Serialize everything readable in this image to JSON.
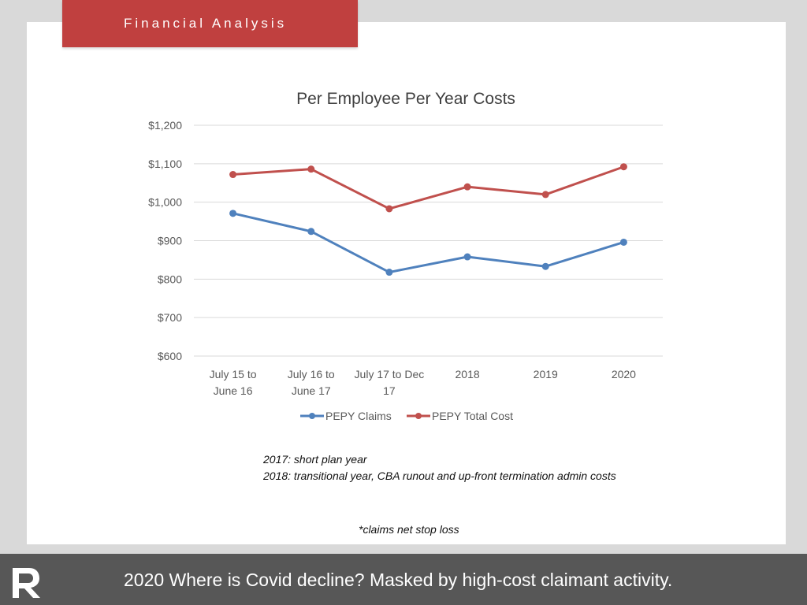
{
  "header": {
    "title": "Financial Analysis"
  },
  "chart_data": {
    "type": "line",
    "title": "Per Employee Per Year Costs",
    "categories": [
      [
        "July 15 to",
        "June 16"
      ],
      [
        "July 16 to",
        "June 17"
      ],
      [
        "July 17 to Dec",
        "17"
      ],
      [
        "2018"
      ],
      [
        "2019"
      ],
      [
        "2020"
      ]
    ],
    "ylim": [
      600,
      1200
    ],
    "yticks": [
      600,
      700,
      800,
      900,
      1000,
      1100,
      1200
    ],
    "ytick_labels": [
      "$600",
      "$700",
      "$800",
      "$900",
      "$1,000",
      "$1,100",
      "$1,200"
    ],
    "grid": true,
    "legend_position": "bottom",
    "series": [
      {
        "name": "PEPY Claims",
        "color": "#4f81bd",
        "values": [
          971,
          924,
          818,
          858,
          833,
          896
        ]
      },
      {
        "name": "PEPY Total Cost",
        "color": "#c0504d",
        "values": [
          1072,
          1086,
          983,
          1040,
          1020,
          1092
        ]
      }
    ]
  },
  "notes": {
    "line1": "2017: short plan year",
    "line2": "2018: transitional year, CBA runout and up-front termination admin costs",
    "footnote": "*claims net stop loss"
  },
  "footer": {
    "caption": "2020  Where is Covid decline? Masked by high-cost claimant activity.",
    "logo_icon": "r-logo-icon"
  }
}
